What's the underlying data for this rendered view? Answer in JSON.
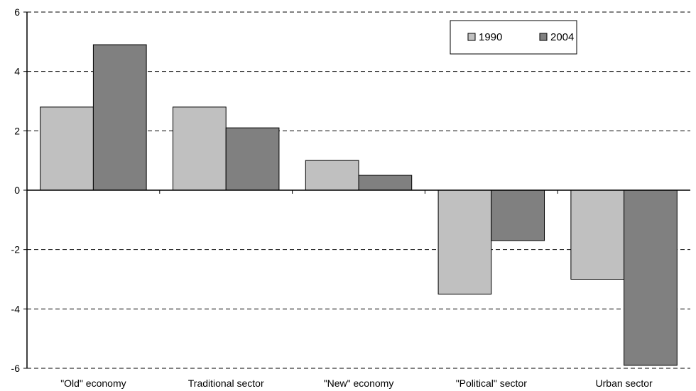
{
  "chart_data": {
    "type": "bar",
    "categories": [
      "\"Old\" economy",
      "Traditional sector",
      "\"New\" economy",
      "\"Political\" sector",
      "Urban sector"
    ],
    "series": [
      {
        "name": "1990",
        "values": [
          2.8,
          2.8,
          1.0,
          -3.5,
          -3.0
        ],
        "color": "#c0c0c0"
      },
      {
        "name": "2004",
        "values": [
          4.9,
          2.1,
          0.5,
          -1.7,
          -5.9
        ],
        "color": "#808080"
      }
    ],
    "ylim": [
      -6,
      6
    ],
    "yticks": [
      -6,
      -4,
      -2,
      0,
      2,
      4,
      6
    ],
    "grid": true,
    "legend_position": "top-right",
    "title": "",
    "xlabel": "",
    "ylabel": ""
  }
}
